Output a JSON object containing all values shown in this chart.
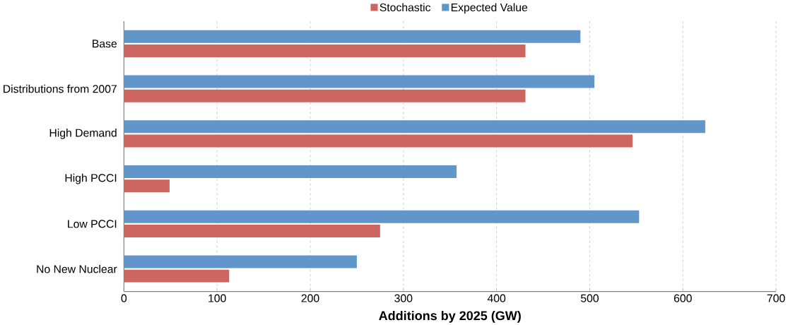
{
  "chart_data": {
    "type": "bar",
    "orientation": "horizontal",
    "xlabel": "Additions by 2025 (GW)",
    "categories": [
      "Base",
      "Distributions from 2007",
      "High Demand",
      "High PCCI",
      "Low PCCI",
      "No New Nuclear"
    ],
    "series": [
      {
        "name": "Stochastic",
        "color": "#cd6660",
        "values": [
          431,
          431,
          546,
          49,
          275,
          113
        ]
      },
      {
        "name": "Expected Value",
        "color": "#6096c9",
        "values": [
          490,
          505,
          624,
          357,
          553,
          250
        ]
      }
    ],
    "xlim": [
      0,
      700
    ],
    "xticks": [
      0,
      100,
      200,
      300,
      400,
      500,
      600,
      700
    ],
    "grid": "x",
    "legend": "top"
  }
}
